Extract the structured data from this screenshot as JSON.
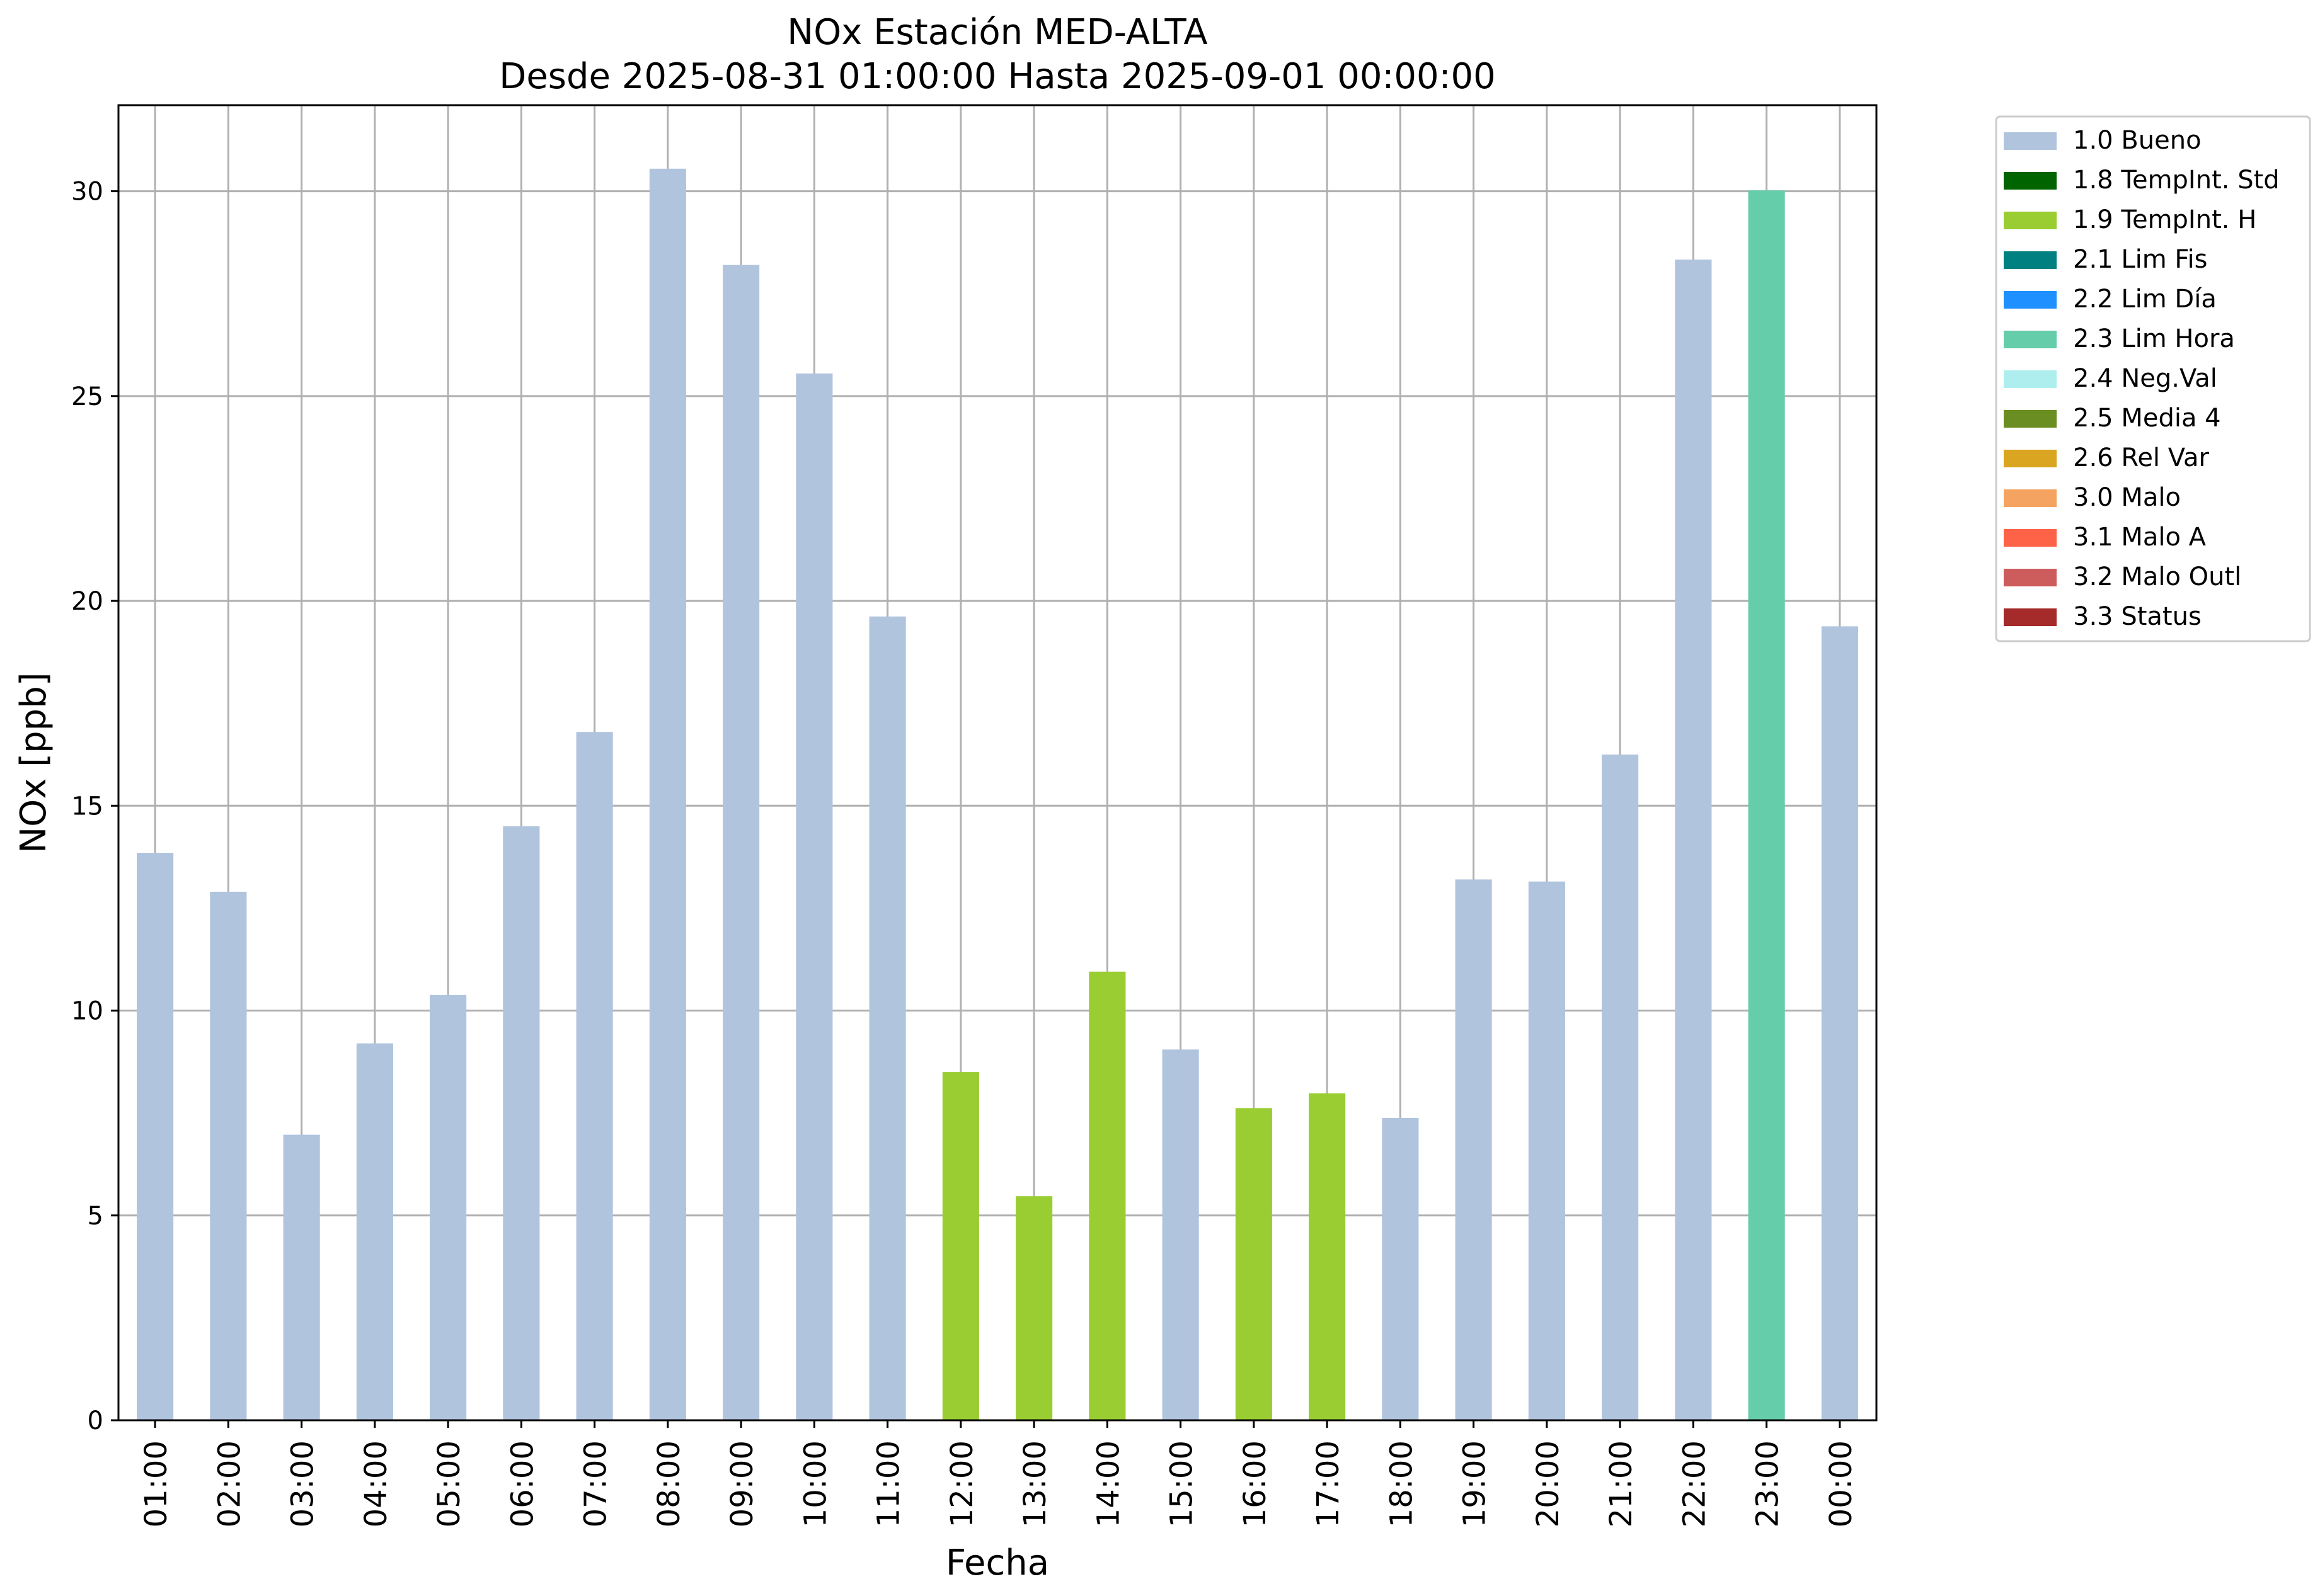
{
  "chart_data": {
    "type": "bar",
    "title": "NOx Estación MED-ALTA",
    "subtitle": "Desde 2025-08-31 01:00:00 Hasta 2025-09-01 00:00:00",
    "xlabel": "Fecha",
    "ylabel": "NOx [ppb]",
    "ylim": [
      0,
      32.1
    ],
    "yticks": [
      0,
      5,
      10,
      15,
      20,
      25,
      30
    ],
    "grid": true,
    "legend_position": "outside-top-right",
    "categories": [
      "01:00",
      "02:00",
      "03:00",
      "04:00",
      "05:00",
      "06:00",
      "07:00",
      "08:00",
      "09:00",
      "10:00",
      "11:00",
      "12:00",
      "13:00",
      "14:00",
      "15:00",
      "16:00",
      "17:00",
      "18:00",
      "19:00",
      "20:00",
      "21:00",
      "22:00",
      "23:00",
      "00:00"
    ],
    "values": [
      13.85,
      12.9,
      6.97,
      9.2,
      10.38,
      14.5,
      16.8,
      30.55,
      28.2,
      25.55,
      19.62,
      8.5,
      5.47,
      10.95,
      9.05,
      7.62,
      7.98,
      7.38,
      13.2,
      13.15,
      16.25,
      28.33,
      30.02,
      19.38
    ],
    "flags": [
      "1.0 Bueno",
      "1.0 Bueno",
      "1.0 Bueno",
      "1.0 Bueno",
      "1.0 Bueno",
      "1.0 Bueno",
      "1.0 Bueno",
      "1.0 Bueno",
      "1.0 Bueno",
      "1.0 Bueno",
      "1.0 Bueno",
      "1.9 TempInt. H",
      "1.9 TempInt. H",
      "1.9 TempInt. H",
      "1.0 Bueno",
      "1.9 TempInt. H",
      "1.9 TempInt. H",
      "1.0 Bueno",
      "1.0 Bueno",
      "1.0 Bueno",
      "1.0 Bueno",
      "1.0 Bueno",
      "2.3 Lim Hora",
      "1.0 Bueno"
    ],
    "legend": [
      {
        "label": "1.0 Bueno",
        "color": "#b0c4de"
      },
      {
        "label": "1.8 TempInt. Std",
        "color": "#006400"
      },
      {
        "label": "1.9 TempInt. H",
        "color": "#9acd32"
      },
      {
        "label": "2.1 Lim Fis",
        "color": "#008080"
      },
      {
        "label": "2.2 Lim Día",
        "color": "#1e90ff"
      },
      {
        "label": "2.3 Lim Hora",
        "color": "#66cdaa"
      },
      {
        "label": "2.4 Neg.Val",
        "color": "#afeeee"
      },
      {
        "label": "2.5 Media 4",
        "color": "#6b8e23"
      },
      {
        "label": "2.6 Rel Var",
        "color": "#daa520"
      },
      {
        "label": "3.0 Malo",
        "color": "#f4a460"
      },
      {
        "label": "3.1 Malo A",
        "color": "#ff6347"
      },
      {
        "label": "3.2 Malo Outl",
        "color": "#cd5c5c"
      },
      {
        "label": "3.3 Status",
        "color": "#a52a2a"
      }
    ]
  }
}
